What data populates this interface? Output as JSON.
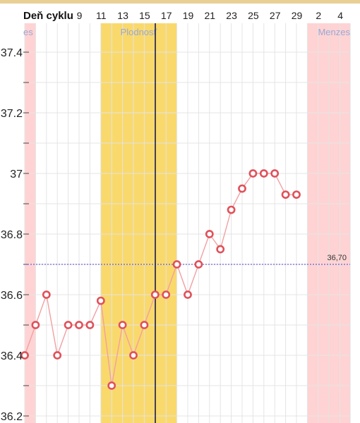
{
  "chart_data": {
    "type": "line",
    "x_axis_title": "Deň cyklu",
    "x_ticks": [
      "9",
      "11",
      "13",
      "15",
      "17",
      "19",
      "21",
      "23",
      "25",
      "27",
      "29",
      "2",
      "4"
    ],
    "y_ticks": [
      "37.4",
      "37.2",
      "37",
      "36.8",
      "36.6",
      "36.4",
      "36.2"
    ],
    "ylim": [
      36.2,
      37.5
    ],
    "grid": true,
    "series": [
      {
        "values": [
          36.4,
          36.5,
          36.6,
          36.4,
          36.5,
          36.5,
          36.5,
          36.58,
          36.3,
          36.5,
          36.4,
          36.5,
          36.6,
          36.6,
          36.7,
          36.6,
          36.7,
          36.8,
          36.75,
          36.88,
          36.95,
          37.0,
          37.0,
          37.0,
          36.93,
          36.93
        ],
        "x_start_day": 6,
        "color": "#f2a0a2",
        "marker_color": "#e0515a"
      }
    ],
    "bands": [
      {
        "label": "es",
        "kind": "menstruation",
        "color": "#ffd3d3"
      },
      {
        "label": "Plodnosť",
        "kind": "fertile",
        "color": "#f9d96b"
      },
      {
        "label": "Menzes",
        "kind": "menstruation",
        "color": "#ffd3d3"
      }
    ],
    "coverline": {
      "value": 36.7,
      "label": "36,70",
      "color": "#4a3fc9"
    },
    "today_marker": {
      "color": "#1a1a4a",
      "dot_color": "#e0407a"
    }
  }
}
